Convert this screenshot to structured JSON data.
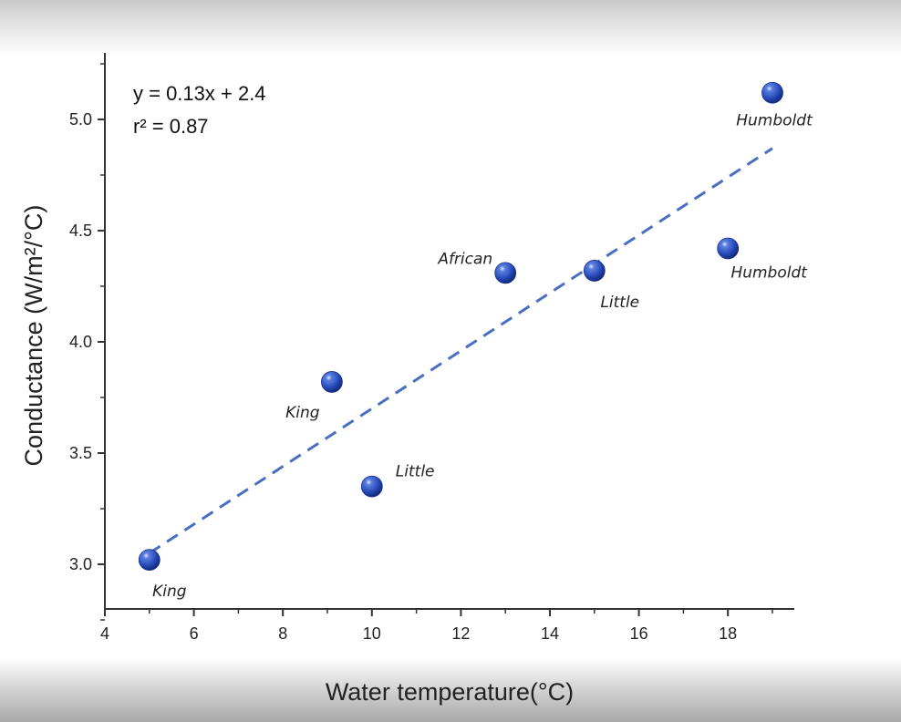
{
  "chart_data": {
    "type": "scatter",
    "xlabel": "Water temperature(°C)",
    "ylabel": "Conductance (W/m²/°C)",
    "xlim": [
      4,
      19.5
    ],
    "ylim": [
      2.8,
      5.3
    ],
    "x_ticks": [
      4,
      6,
      8,
      10,
      12,
      14,
      16,
      18
    ],
    "y_ticks": [
      3.0,
      3.5,
      4.0,
      4.5,
      5.0
    ],
    "x_tick_labels": [
      "4",
      "6",
      "8",
      "10",
      "12",
      "14",
      "16",
      "18"
    ],
    "y_tick_labels": [
      "3.0",
      "3.5",
      "4.0",
      "4.5",
      "5.0"
    ],
    "points": [
      {
        "x": 5,
        "y": 3.02,
        "label": "King"
      },
      {
        "x": 9.1,
        "y": 3.82,
        "label": "King"
      },
      {
        "x": 10,
        "y": 3.35,
        "label": "Little"
      },
      {
        "x": 13,
        "y": 4.31,
        "label": "African"
      },
      {
        "x": 15,
        "y": 4.32,
        "label": "Little"
      },
      {
        "x": 18,
        "y": 4.42,
        "label": "Humboldt"
      },
      {
        "x": 19,
        "y": 5.12,
        "label": "Humboldt"
      }
    ],
    "trendline": {
      "slope": 0.13,
      "intercept": 2.4,
      "x_range": [
        5,
        19
      ],
      "style": "dashed"
    },
    "annotation": {
      "equation": "y = 0.13x + 2.4",
      "r_squared": "r² = 0.87"
    },
    "grid": false,
    "marker_color": "#2547b5",
    "trend_color": "#4a6fc0"
  }
}
